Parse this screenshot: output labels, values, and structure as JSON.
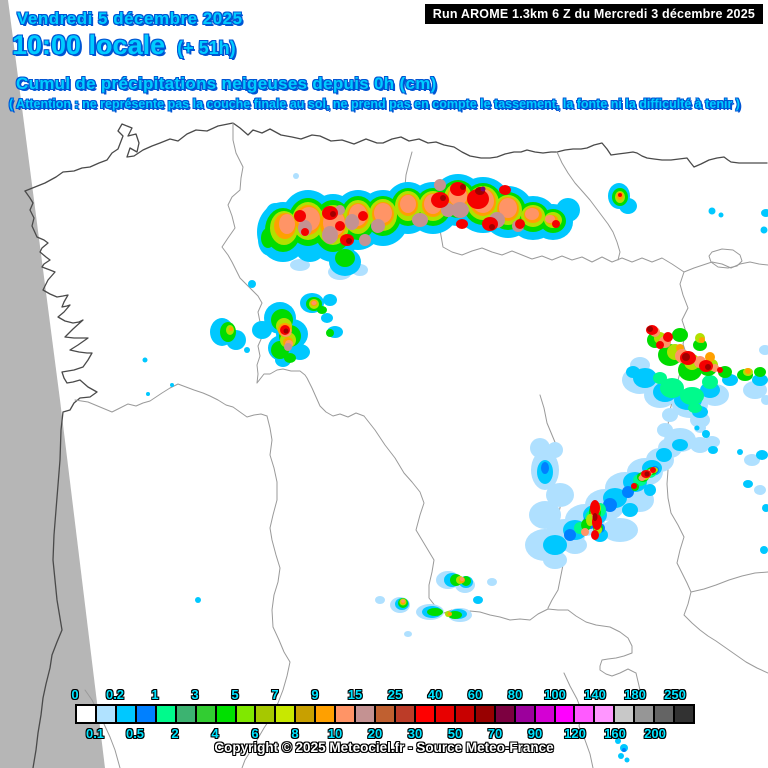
{
  "header": {
    "date_line": "Vendredi 5 décembre 2025",
    "time_line": "10:00 locale",
    "time_offset": "(+ 51h)",
    "run_info": "Run AROME 1.3km 6 Z du Mercredi 3 décembre 2025"
  },
  "title": "Cumul de précipitations neigeuses depuis 0h (cm)",
  "warning": "( Attention : ne représente pas la couche finale au sol, ne prend pas en compte le tassement, la fonte ni la difficulté à tenir )",
  "legend": {
    "unit": "cm",
    "labels": [
      "0",
      "0.1",
      "0.2",
      "0.5",
      "1",
      "2",
      "3",
      "4",
      "5",
      "6",
      "7",
      "8",
      "9",
      "10",
      "15",
      "20",
      "25",
      "30",
      "40",
      "50",
      "60",
      "70",
      "80",
      "90",
      "100",
      "120",
      "140",
      "160",
      "180",
      "200",
      "250"
    ],
    "colors": [
      "#FFFFFF",
      "#B0E2FF",
      "#00C8FF",
      "#0080FF",
      "#00FA8C",
      "#3CB371",
      "#32CD32",
      "#00E000",
      "#80E800",
      "#A6C800",
      "#C8E800",
      "#C8A000",
      "#FFA000",
      "#FF9466",
      "#C49292",
      "#C06030",
      "#BC3C28",
      "#FF0000",
      "#E80000",
      "#C80000",
      "#980000",
      "#7C0040",
      "#9C009C",
      "#D400D4",
      "#FF00FF",
      "#FF5AFF",
      "#FF96FF",
      "#C8C8C8",
      "#969696",
      "#646464",
      "#323232"
    ]
  },
  "copyright": "Copyright © 2025 Meteociel.fr - Source Meteo-France",
  "colors": {
    "title_text": "#00CCFF",
    "title_outline": "#0055D4",
    "legend_label": "#00E4FF",
    "run_box_bg": "#000000",
    "out_of_domain_gray": "#B6B6B6",
    "coast_line": "#4A4A4A",
    "province_border": "#9A9A9A"
  }
}
